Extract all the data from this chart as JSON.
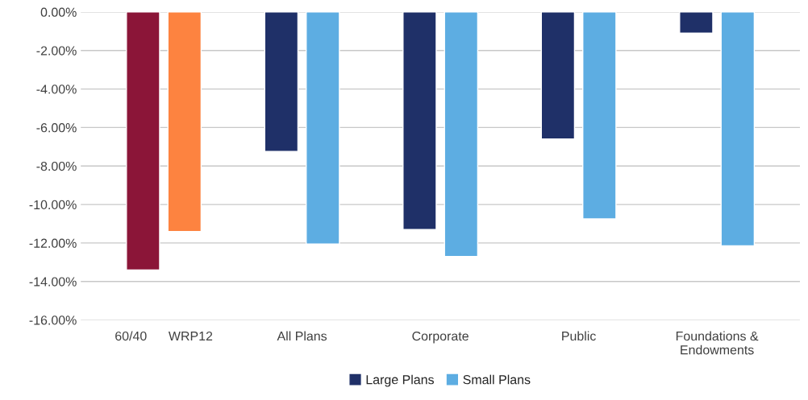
{
  "chart_data": {
    "type": "bar",
    "categories": [
      "60/40      WRP12",
      "All Plans",
      "Corporate",
      "Public",
      "Foundations &\nEndowments"
    ],
    "series": [
      {
        "name": "Large Plans",
        "color": "#1f3068",
        "colors": [
          "#8b1538",
          "#1f3068",
          "#1f3068",
          "#1f3068",
          "#1f3068"
        ],
        "values": [
          -13.4,
          -7.25,
          -11.3,
          -6.6,
          -1.1
        ]
      },
      {
        "name": "Small Plans",
        "color": "#5dade2",
        "colors": [
          "#fd8340",
          "#5dade2",
          "#5dade2",
          "#5dade2",
          "#5dade2"
        ],
        "values": [
          -11.4,
          -12.05,
          -12.7,
          -10.75,
          -12.15
        ]
      }
    ],
    "ylim": [
      -16,
      0
    ],
    "yticks": [
      {
        "value": 0,
        "label": "0.00%"
      },
      {
        "value": -2,
        "label": "-2.00%"
      },
      {
        "value": -4,
        "label": "-4.00%"
      },
      {
        "value": -6,
        "label": "-6.00%"
      },
      {
        "value": -8,
        "label": "-8.00%"
      },
      {
        "value": -10,
        "label": "-10.00%"
      },
      {
        "value": -12,
        "label": "-12.00%"
      },
      {
        "value": -14,
        "label": "-14.00%"
      },
      {
        "value": -16,
        "label": "-16.00%"
      }
    ],
    "grid": "y",
    "legend": "bottom"
  }
}
